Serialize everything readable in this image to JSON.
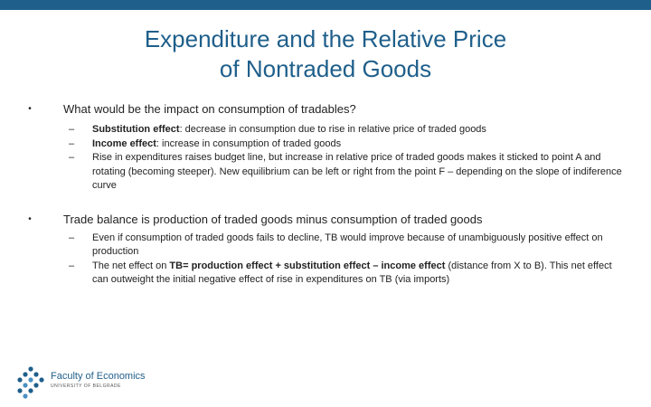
{
  "slide": {
    "title_line1": "Expenditure and the Relative Price",
    "title_line2": "of Nontraded Goods",
    "bullets": [
      {
        "mark": "•",
        "text": "What would be the impact on consumption of tradables?",
        "subs": [
          {
            "mark": "–",
            "bold": "Substitution effect",
            "text": ": decrease in consumption due to rise in relative price of traded goods"
          },
          {
            "mark": "–",
            "bold": "Income effect",
            "text": ": increase in consumption of traded goods"
          },
          {
            "mark": "–",
            "bold": "",
            "text": "Rise in expenditures raises budget line, but increase in relative price of traded goods makes it sticked to point A and rotating (becoming steeper). New equilibrium can be left or right from the point F – depending on the slope of indiference curve"
          }
        ]
      },
      {
        "mark": "•",
        "text": "Trade balance is production of traded goods minus consumption of traded goods",
        "subs": [
          {
            "mark": "–",
            "text": "Even if consumption of traded goods fails to decline, TB would improve because of unambiguously positive effect on production"
          },
          {
            "mark": "–",
            "pre": "The net effect on ",
            "bold": "TB= production effect + substitution effect – income effect",
            "post": " (distance from X to B). This net effect can outweight the initial negative effect of rise in expenditures on TB (via imports)"
          }
        ]
      }
    ]
  },
  "logo": {
    "name": "Faculty of Economics",
    "subtitle": "UNIVERSITY OF BELGRADE"
  },
  "colors": {
    "accent": "#1f5f8b"
  }
}
